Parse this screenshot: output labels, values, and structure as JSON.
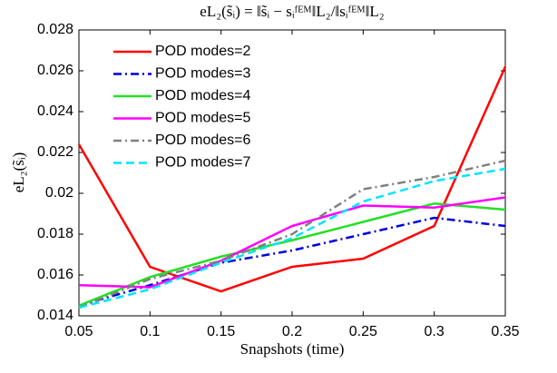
{
  "chart_data": {
    "type": "line",
    "title": "eL₂(s̃ᵢ) = ‖s̃ᵢ − sᵢᶠᴱᴹ‖L₂/‖sᵢᶠᴱᴹ‖L₂",
    "x_label": "Snapshots (time)",
    "y_label": "eL₂(s̃ᵢ)",
    "x": [
      0.05,
      0.1,
      0.15,
      0.2,
      0.25,
      0.3,
      0.35
    ],
    "xlim": [
      0.05,
      0.35
    ],
    "xticks": [
      0.05,
      0.1,
      0.15,
      0.2,
      0.25,
      0.3,
      0.35
    ],
    "ylim": [
      0.014,
      0.028
    ],
    "yticks": [
      0.014,
      0.016,
      0.018,
      0.02,
      0.022,
      0.024,
      0.026,
      0.028
    ],
    "grid": false,
    "legend": "upper left",
    "series": [
      {
        "name": "POD modes=2",
        "color": "#ff0000",
        "dash": "solid",
        "values": [
          0.0224,
          0.0164,
          0.0152,
          0.0164,
          0.0168,
          0.0184,
          0.0262
        ]
      },
      {
        "name": "POD modes=3",
        "color": "#0000dd",
        "dash": "dashdot",
        "values": [
          0.0145,
          0.0155,
          0.0166,
          0.0172,
          0.018,
          0.0188,
          0.0184
        ]
      },
      {
        "name": "POD modes=4",
        "color": "#22e022",
        "dash": "solid",
        "values": [
          0.0145,
          0.0159,
          0.0169,
          0.0177,
          0.0186,
          0.0195,
          0.0192
        ]
      },
      {
        "name": "POD modes=5",
        "color": "#ff00ff",
        "dash": "solid",
        "values": [
          0.0155,
          0.0154,
          0.0167,
          0.0184,
          0.0194,
          0.0193,
          0.0198
        ]
      },
      {
        "name": "POD modes=6",
        "color": "#808080",
        "dash": "dashdot",
        "values": [
          0.0144,
          0.0158,
          0.0167,
          0.018,
          0.0202,
          0.0208,
          0.0216
        ]
      },
      {
        "name": "POD modes=7",
        "color": "#00e5ff",
        "dash": "dashed",
        "values": [
          0.0144,
          0.0153,
          0.0166,
          0.0178,
          0.0196,
          0.0206,
          0.0212
        ]
      }
    ]
  }
}
